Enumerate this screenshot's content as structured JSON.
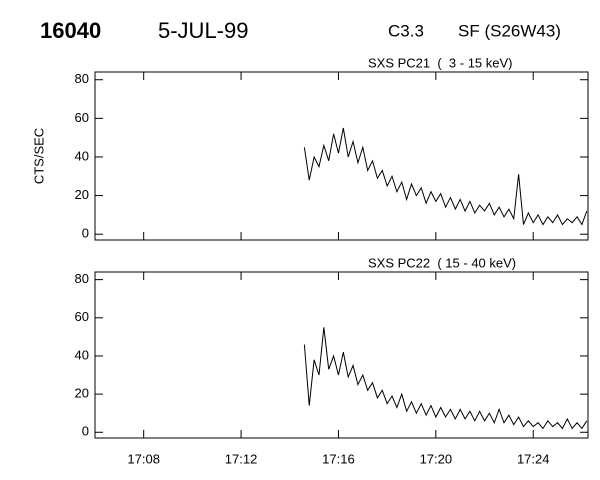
{
  "header": {
    "id": "16040",
    "date": "5-JUL-99",
    "class": "C3.3",
    "location": "SF (S26W43)"
  },
  "chart_data": [
    {
      "type": "line",
      "title": "SXS PC21  (  3 - 15 keV)",
      "ylabel": "CTS/SEC",
      "color": "#000000",
      "ylim": [
        -3,
        84
      ],
      "yticks": [
        0,
        20,
        40,
        60,
        80
      ],
      "xlim": [
        1026,
        1046.25
      ],
      "x": [
        1034.6,
        1034.8,
        1035,
        1035.2,
        1035.4,
        1035.6,
        1035.8,
        1036,
        1036.2,
        1036.4,
        1036.6,
        1036.8,
        1037,
        1037.2,
        1037.4,
        1037.6,
        1037.8,
        1038,
        1038.2,
        1038.4,
        1038.6,
        1038.8,
        1039,
        1039.2,
        1039.4,
        1039.6,
        1039.8,
        1040,
        1040.2,
        1040.4,
        1040.6,
        1040.8,
        1041,
        1041.2,
        1041.4,
        1041.6,
        1041.8,
        1042,
        1042.2,
        1042.4,
        1042.6,
        1042.8,
        1043,
        1043.2,
        1043.4,
        1043.6,
        1043.8,
        1044,
        1044.2,
        1044.4,
        1044.6,
        1044.8,
        1045,
        1045.2,
        1045.4,
        1045.6,
        1045.8,
        1046,
        1046.2
      ],
      "values": [
        45,
        28,
        40,
        35,
        46,
        38,
        52,
        42,
        55,
        40,
        48,
        37,
        45,
        33,
        38,
        29,
        33,
        25,
        30,
        22,
        27,
        18,
        26,
        20,
        24,
        16,
        22,
        17,
        21,
        14,
        19,
        13,
        18,
        12,
        17,
        11,
        15,
        12,
        16,
        10,
        14,
        9,
        13,
        8,
        31,
        5,
        11,
        6,
        10,
        5,
        9,
        6,
        10,
        5,
        8,
        6,
        9,
        5,
        12
      ]
    },
    {
      "type": "line",
      "title": "SXS PC22  ( 15 - 40 keV)",
      "color": "#000000",
      "ylim": [
        -3,
        84
      ],
      "yticks": [
        0,
        20,
        40,
        60,
        80
      ],
      "xlim": [
        1026,
        1046.25
      ],
      "xticks": [
        {
          "value": 1028,
          "label": "17:08"
        },
        {
          "value": 1032,
          "label": "17:12"
        },
        {
          "value": 1036,
          "label": "17:16"
        },
        {
          "value": 1040,
          "label": "17:20"
        },
        {
          "value": 1044,
          "label": "17:24"
        }
      ],
      "x": [
        1034.6,
        1034.8,
        1035,
        1035.2,
        1035.4,
        1035.6,
        1035.8,
        1036,
        1036.2,
        1036.4,
        1036.6,
        1036.8,
        1037,
        1037.2,
        1037.4,
        1037.6,
        1037.8,
        1038,
        1038.2,
        1038.4,
        1038.6,
        1038.8,
        1039,
        1039.2,
        1039.4,
        1039.6,
        1039.8,
        1040,
        1040.2,
        1040.4,
        1040.6,
        1040.8,
        1041,
        1041.2,
        1041.4,
        1041.6,
        1041.8,
        1042,
        1042.2,
        1042.4,
        1042.6,
        1042.8,
        1043,
        1043.2,
        1043.4,
        1043.6,
        1043.8,
        1044,
        1044.2,
        1044.4,
        1044.6,
        1044.8,
        1045,
        1045.2,
        1045.4,
        1045.6,
        1045.8,
        1046,
        1046.2
      ],
      "values": [
        46,
        14,
        38,
        30,
        55,
        33,
        40,
        30,
        42,
        29,
        35,
        25,
        30,
        22,
        26,
        18,
        22,
        15,
        19,
        13,
        20,
        11,
        16,
        10,
        15,
        9,
        14,
        8,
        13,
        8,
        12,
        7,
        12,
        7,
        11,
        6,
        11,
        6,
        10,
        5,
        12,
        5,
        9,
        4,
        8,
        3,
        6,
        3,
        5,
        2,
        6,
        3,
        5,
        2,
        7,
        2,
        5,
        2,
        6
      ]
    }
  ]
}
